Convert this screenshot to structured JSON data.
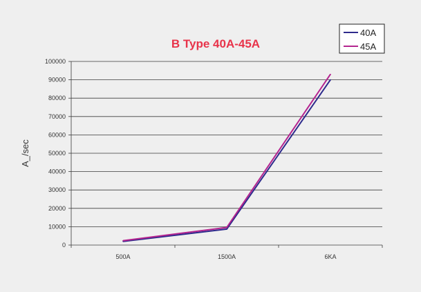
{
  "chart_data": {
    "type": "line",
    "title": "B Type 40A-45A",
    "xlabel": "",
    "ylabel": "A_/sec",
    "categories": [
      "500A",
      "1500A",
      "6KA"
    ],
    "ylim": [
      0,
      100000
    ],
    "yticks": [
      0,
      10000,
      20000,
      30000,
      40000,
      50000,
      60000,
      70000,
      80000,
      90000,
      100000
    ],
    "grid": true,
    "legend_position": "top-right",
    "series": [
      {
        "name": "40A",
        "values": [
          2000,
          8700,
          90000
        ],
        "color": "#2e2a8c"
      },
      {
        "name": "45A",
        "values": [
          2400,
          9600,
          93000
        ],
        "color": "#b4248f"
      }
    ],
    "title_color": "#e8334a"
  }
}
